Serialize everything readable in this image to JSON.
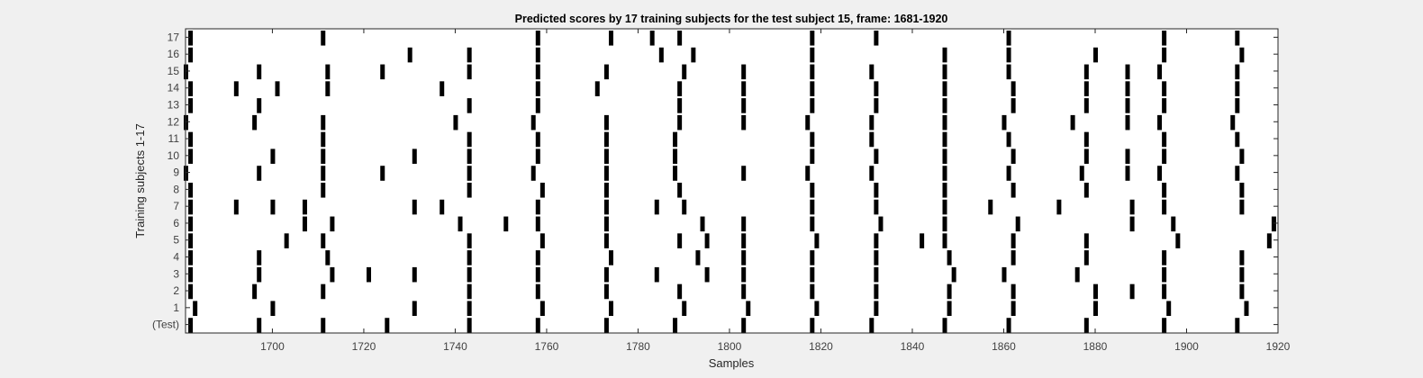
{
  "chart_data": {
    "type": "heatmap",
    "title": "Predicted scores by 17 training subjects for the test subject 15, frame: 1681-1920",
    "xlabel": "Samples",
    "ylabel": "Training subjects 1-17",
    "xlim": [
      1681,
      1920
    ],
    "x_ticks": [
      1700,
      1720,
      1740,
      1760,
      1780,
      1800,
      1820,
      1840,
      1860,
      1880,
      1900,
      1920
    ],
    "y_tick_labels": [
      "17",
      "16",
      "15",
      "14",
      "13",
      "12",
      "11",
      "10",
      "9",
      "8",
      "7",
      "6",
      "5",
      "4",
      "3",
      "2",
      "1",
      "(Test)"
    ],
    "grid": false,
    "colors": {
      "mark": "#000000",
      "plot_bg": "#ffffff",
      "figure_bg": "#f0f0f0",
      "axis": "#262626",
      "tick_text": "#404040"
    },
    "series": [
      {
        "name": "17",
        "values": [
          1682,
          1711,
          1758,
          1774,
          1783,
          1789,
          1818,
          1832,
          1861,
          1895,
          1911
        ]
      },
      {
        "name": "16",
        "values": [
          1682,
          1730,
          1743,
          1758,
          1785,
          1792,
          1818,
          1847,
          1861,
          1880,
          1895,
          1912
        ]
      },
      {
        "name": "15",
        "values": [
          1681,
          1697,
          1712,
          1724,
          1743,
          1758,
          1773,
          1790,
          1803,
          1818,
          1831,
          1847,
          1861,
          1878,
          1887,
          1894,
          1911
        ]
      },
      {
        "name": "14",
        "values": [
          1682,
          1692,
          1701,
          1712,
          1737,
          1758,
          1771,
          1789,
          1803,
          1818,
          1832,
          1847,
          1862,
          1878,
          1887,
          1895,
          1911
        ]
      },
      {
        "name": "13",
        "values": [
          1682,
          1697,
          1743,
          1758,
          1789,
          1803,
          1818,
          1832,
          1847,
          1862,
          1878,
          1887,
          1895,
          1911
        ]
      },
      {
        "name": "12",
        "values": [
          1681,
          1696,
          1711,
          1740,
          1757,
          1773,
          1789,
          1803,
          1817,
          1831,
          1847,
          1860,
          1875,
          1887,
          1894,
          1910
        ]
      },
      {
        "name": "11",
        "values": [
          1682,
          1711,
          1743,
          1758,
          1773,
          1788,
          1818,
          1831,
          1847,
          1861,
          1878,
          1895,
          1911
        ]
      },
      {
        "name": "10",
        "values": [
          1682,
          1700,
          1711,
          1731,
          1743,
          1758,
          1773,
          1788,
          1818,
          1832,
          1847,
          1862,
          1878,
          1887,
          1895,
          1912
        ]
      },
      {
        "name": "9",
        "values": [
          1681,
          1697,
          1711,
          1724,
          1743,
          1757,
          1773,
          1788,
          1803,
          1817,
          1831,
          1847,
          1861,
          1877,
          1887,
          1894,
          1911
        ]
      },
      {
        "name": "8",
        "values": [
          1682,
          1711,
          1743,
          1759,
          1773,
          1789,
          1818,
          1832,
          1847,
          1862,
          1878,
          1895,
          1912
        ]
      },
      {
        "name": "7",
        "values": [
          1682,
          1692,
          1700,
          1707,
          1731,
          1737,
          1758,
          1773,
          1784,
          1790,
          1818,
          1832,
          1847,
          1857,
          1872,
          1888,
          1895,
          1912
        ]
      },
      {
        "name": "6",
        "values": [
          1682,
          1707,
          1713,
          1741,
          1751,
          1758,
          1773,
          1794,
          1803,
          1818,
          1833,
          1847,
          1863,
          1888,
          1897,
          1919
        ]
      },
      {
        "name": "5",
        "values": [
          1682,
          1703,
          1711,
          1743,
          1759,
          1773,
          1789,
          1795,
          1803,
          1819,
          1832,
          1842,
          1847,
          1862,
          1878,
          1898,
          1918
        ]
      },
      {
        "name": "4",
        "values": [
          1682,
          1697,
          1712,
          1743,
          1758,
          1774,
          1793,
          1803,
          1818,
          1832,
          1848,
          1862,
          1878,
          1895,
          1912
        ]
      },
      {
        "name": "3",
        "values": [
          1682,
          1697,
          1713,
          1721,
          1731,
          1743,
          1758,
          1773,
          1784,
          1795,
          1803,
          1818,
          1832,
          1849,
          1860,
          1876,
          1895,
          1912
        ]
      },
      {
        "name": "2",
        "values": [
          1682,
          1696,
          1711,
          1743,
          1758,
          1773,
          1789,
          1803,
          1818,
          1832,
          1848,
          1862,
          1880,
          1888,
          1895,
          1912
        ]
      },
      {
        "name": "1",
        "values": [
          1683,
          1700,
          1731,
          1743,
          1759,
          1774,
          1790,
          1804,
          1819,
          1832,
          1848,
          1862,
          1880,
          1896,
          1913
        ]
      },
      {
        "name": "(Test)",
        "values": [
          1682,
          1697,
          1711,
          1725,
          1743,
          1758,
          1773,
          1788,
          1803,
          1818,
          1831,
          1847,
          1861,
          1878,
          1895,
          1911
        ]
      }
    ]
  }
}
